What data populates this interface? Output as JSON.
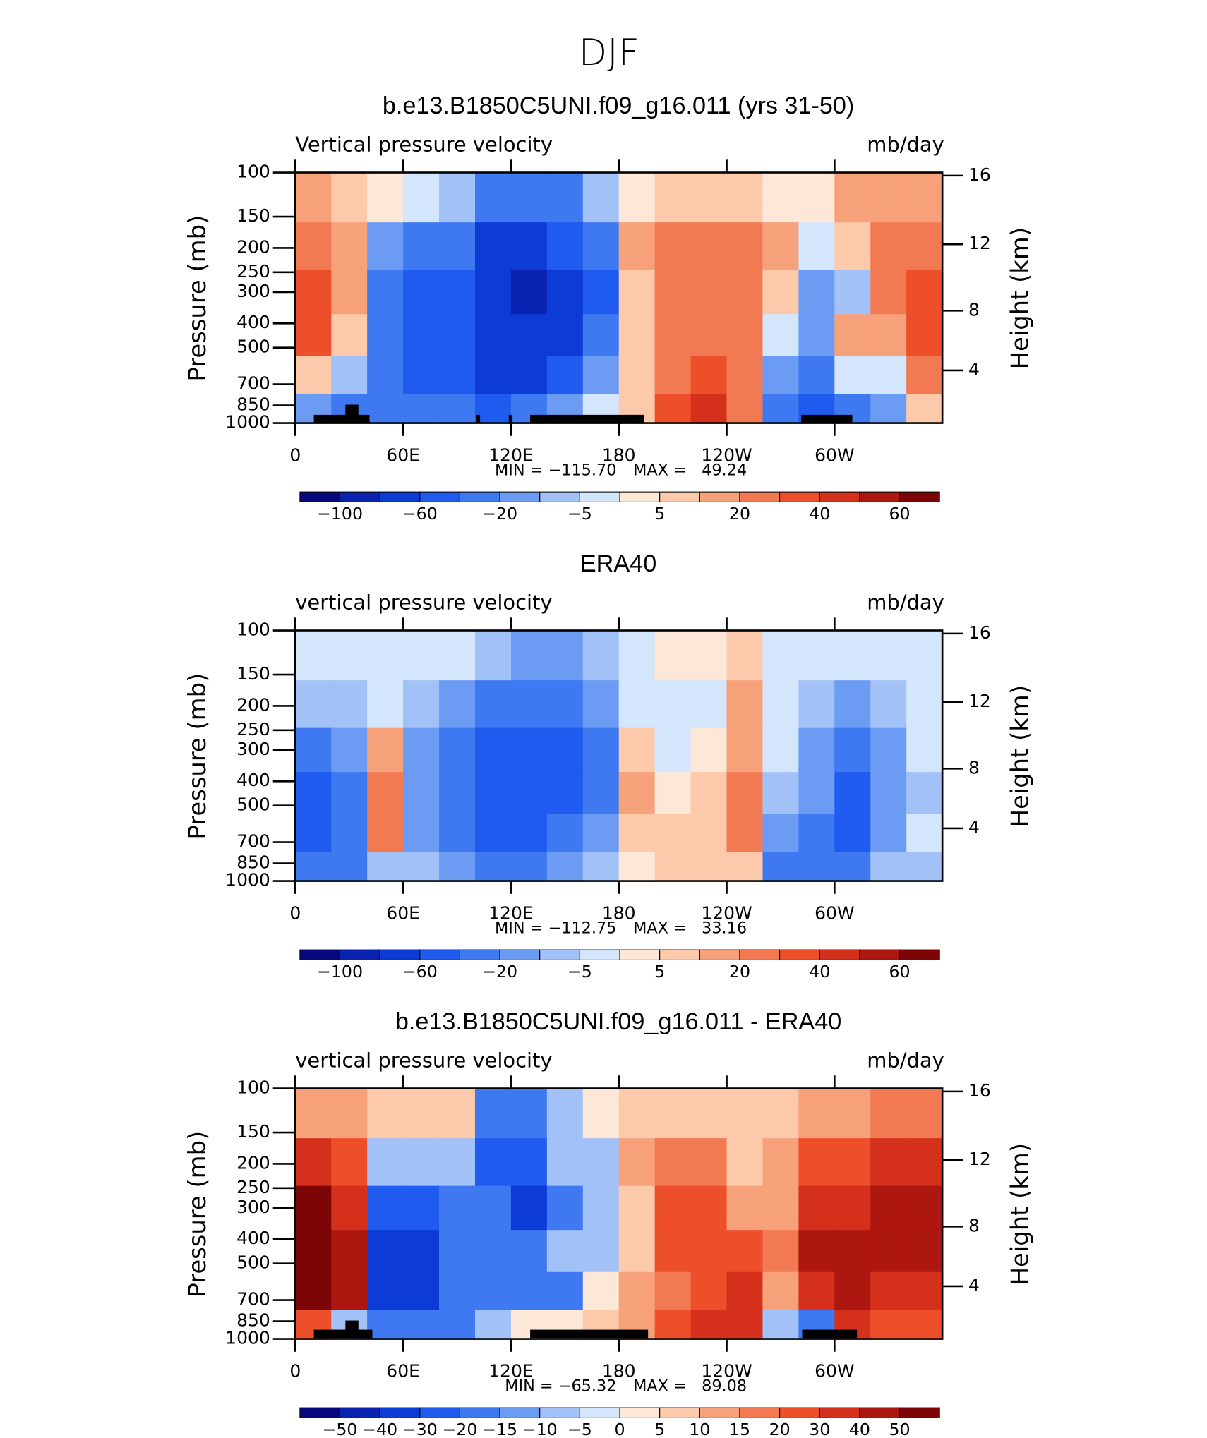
{
  "title": "DJF",
  "chart_data": [
    {
      "type": "contour",
      "title": "b.e13.B1850C5UNI.f09_g16.011 (yrs 31-50)",
      "left_label": "Vertical pressure velocity",
      "right_label": "mb/day",
      "y_label": "Pressure (mb)",
      "y2_label": "Height (km)",
      "x": [
        10,
        30,
        50,
        70,
        90,
        110,
        130,
        150,
        170,
        190,
        210,
        230,
        250,
        270,
        290,
        310,
        330,
        350
      ],
      "y": [
        125,
        200,
        300,
        450,
        650,
        900
      ],
      "z": [
        [
          10,
          5,
          0,
          -5,
          -10,
          -40,
          -40,
          -40,
          -10,
          0,
          5,
          5,
          5,
          0,
          0,
          10,
          10,
          10
        ],
        [
          20,
          10,
          -20,
          -40,
          -40,
          -80,
          -80,
          -60,
          -40,
          10,
          20,
          20,
          20,
          10,
          -5,
          5,
          20,
          20
        ],
        [
          30,
          10,
          -40,
          -60,
          -60,
          -80,
          -100,
          -80,
          -60,
          5,
          20,
          20,
          20,
          5,
          -20,
          -10,
          20,
          30
        ],
        [
          30,
          5,
          -40,
          -60,
          -60,
          -80,
          -80,
          -80,
          -40,
          5,
          20,
          20,
          20,
          -5,
          -20,
          10,
          10,
          30
        ],
        [
          5,
          -10,
          -40,
          -60,
          -60,
          -80,
          -80,
          -60,
          -20,
          5,
          20,
          30,
          20,
          -20,
          -40,
          -5,
          -5,
          20
        ],
        [
          -20,
          -40,
          -30,
          -40,
          -40,
          -60,
          -40,
          -20,
          -5,
          5,
          30,
          40,
          20,
          -40,
          -60,
          -40,
          -20,
          5
        ]
      ],
      "xlim": [
        0,
        360
      ],
      "xticks": [
        0,
        {
          "value": 60,
          "label": "60E"
        },
        {
          "value": 120,
          "label": "120E"
        },
        180,
        {
          "value": 240,
          "label": "120W"
        },
        {
          "value": 300,
          "label": "60W"
        }
      ],
      "ylim": [
        1000,
        100
      ],
      "yscale": "log",
      "yticks": [
        100,
        150,
        200,
        250,
        300,
        400,
        500,
        700,
        850,
        1000
      ],
      "y2ticks": [
        4,
        8,
        12,
        16
      ],
      "levels": [
        -100,
        -80,
        -60,
        -40,
        -20,
        -10,
        -5,
        0,
        5,
        10,
        20,
        30,
        40,
        50,
        60
      ],
      "colors": [
        "#07077e",
        "#0a22b0",
        "#0c3bd6",
        "#1f5bee",
        "#3e79f1",
        "#6c9bf3",
        "#a2c1f7",
        "#d3e6fc",
        "#fde8d8",
        "#fcc9ab",
        "#f7a17a",
        "#f27a52",
        "#ee4f2b",
        "#d5301b",
        "#ae170f",
        "#7d0505"
      ],
      "colorbar_ticks": [
        {
          "value": -100,
          "label": "−100"
        },
        {
          "value": -60,
          "label": "−60"
        },
        {
          "value": -20,
          "label": "−20"
        },
        {
          "value": -5,
          "label": "−5"
        },
        5,
        20,
        40,
        60
      ],
      "stats": [
        "MIN = −115.70",
        "MAX =   49.24"
      ]
    },
    {
      "type": "contour",
      "title": "ERA40",
      "left_label": "vertical pressure velocity",
      "right_label": "mb/day",
      "y_label": "Pressure (mb)",
      "y2_label": "Height (km)",
      "x": [
        10,
        30,
        50,
        70,
        90,
        110,
        130,
        150,
        170,
        190,
        210,
        230,
        250,
        270,
        290,
        310,
        330,
        350
      ],
      "y": [
        125,
        200,
        300,
        450,
        650,
        900
      ],
      "z": [
        [
          -5,
          -5,
          -5,
          -5,
          -5,
          -10,
          -20,
          -20,
          -10,
          -5,
          0,
          0,
          5,
          -5,
          -5,
          -5,
          -5,
          -5
        ],
        [
          -10,
          -10,
          -5,
          -10,
          -20,
          -40,
          -40,
          -40,
          -20,
          -5,
          -5,
          -5,
          10,
          -5,
          -10,
          -20,
          -10,
          -5
        ],
        [
          -40,
          -20,
          10,
          -20,
          -40,
          -60,
          -60,
          -60,
          -40,
          5,
          -5,
          0,
          10,
          -5,
          -20,
          -40,
          -20,
          -5
        ],
        [
          -60,
          -40,
          20,
          -20,
          -40,
          -60,
          -60,
          -60,
          -40,
          10,
          0,
          5,
          20,
          -10,
          -20,
          -60,
          -20,
          -10
        ],
        [
          -60,
          -40,
          20,
          -20,
          -40,
          -60,
          -60,
          -40,
          -20,
          5,
          5,
          5,
          20,
          -20,
          -40,
          -60,
          -20,
          -5
        ],
        [
          -40,
          -30,
          -10,
          -10,
          -20,
          -40,
          -40,
          -20,
          -10,
          0,
          5,
          5,
          5,
          -40,
          -40,
          -40,
          -10,
          -10
        ]
      ],
      "xlim": [
        0,
        360
      ],
      "xticks": [
        0,
        {
          "value": 60,
          "label": "60E"
        },
        {
          "value": 120,
          "label": "120E"
        },
        180,
        {
          "value": 240,
          "label": "120W"
        },
        {
          "value": 300,
          "label": "60W"
        }
      ],
      "ylim": [
        1000,
        100
      ],
      "yscale": "log",
      "yticks": [
        100,
        150,
        200,
        250,
        300,
        400,
        500,
        700,
        850,
        1000
      ],
      "y2ticks": [
        4,
        8,
        12,
        16
      ],
      "levels": [
        -100,
        -80,
        -60,
        -40,
        -20,
        -10,
        -5,
        0,
        5,
        10,
        20,
        30,
        40,
        50,
        60
      ],
      "colors": [
        "#07077e",
        "#0a22b0",
        "#0c3bd6",
        "#1f5bee",
        "#3e79f1",
        "#6c9bf3",
        "#a2c1f7",
        "#d3e6fc",
        "#fde8d8",
        "#fcc9ab",
        "#f7a17a",
        "#f27a52",
        "#ee4f2b",
        "#d5301b",
        "#ae170f",
        "#7d0505"
      ],
      "colorbar_ticks": [
        {
          "value": -100,
          "label": "−100"
        },
        {
          "value": -60,
          "label": "−60"
        },
        {
          "value": -20,
          "label": "−20"
        },
        {
          "value": -5,
          "label": "−5"
        },
        5,
        20,
        40,
        60
      ],
      "stats": [
        "MIN = −112.75",
        "MAX =   33.16"
      ]
    },
    {
      "type": "contour",
      "title": "b.e13.B1850C5UNI.f09_g16.011 - ERA40",
      "left_label": "vertical pressure velocity",
      "right_label": "mb/day",
      "y_label": "Pressure (mb)",
      "y2_label": "Height (km)",
      "x": [
        10,
        30,
        50,
        70,
        90,
        110,
        130,
        150,
        170,
        190,
        210,
        230,
        250,
        270,
        290,
        310,
        330,
        350
      ],
      "y": [
        125,
        200,
        300,
        450,
        650,
        900
      ],
      "z": [
        [
          10,
          10,
          5,
          5,
          5,
          -20,
          -20,
          -10,
          0,
          5,
          5,
          5,
          5,
          5,
          10,
          10,
          15,
          15
        ],
        [
          30,
          20,
          -10,
          -10,
          -10,
          -30,
          -30,
          -10,
          -10,
          10,
          15,
          15,
          5,
          10,
          20,
          20,
          30,
          30
        ],
        [
          50,
          30,
          -30,
          -30,
          -20,
          -20,
          -40,
          -20,
          -10,
          5,
          20,
          20,
          10,
          10,
          30,
          30,
          40,
          40
        ],
        [
          60,
          40,
          -40,
          -40,
          -20,
          -20,
          -20,
          -10,
          -10,
          5,
          20,
          20,
          20,
          15,
          40,
          40,
          40,
          40
        ],
        [
          60,
          40,
          -40,
          -40,
          -20,
          -20,
          -20,
          -20,
          0,
          10,
          15,
          20,
          30,
          10,
          30,
          40,
          30,
          30
        ],
        [
          20,
          -10,
          -20,
          -20,
          -20,
          -10,
          0,
          0,
          5,
          10,
          20,
          30,
          30,
          -10,
          -20,
          30,
          20,
          20
        ]
      ],
      "xlim": [
        0,
        360
      ],
      "xticks": [
        0,
        {
          "value": 60,
          "label": "60E"
        },
        {
          "value": 120,
          "label": "120E"
        },
        180,
        {
          "value": 240,
          "label": "120W"
        },
        {
          "value": 300,
          "label": "60W"
        }
      ],
      "ylim": [
        1000,
        100
      ],
      "yscale": "log",
      "yticks": [
        100,
        150,
        200,
        250,
        300,
        400,
        500,
        700,
        850,
        1000
      ],
      "y2ticks": [
        4,
        8,
        12,
        16
      ],
      "levels": [
        -50,
        -40,
        -30,
        -20,
        -15,
        -10,
        -5,
        0,
        5,
        10,
        15,
        20,
        30,
        40,
        50
      ],
      "colors": [
        "#07077e",
        "#0a22b0",
        "#0c3bd6",
        "#1f5bee",
        "#3e79f1",
        "#6c9bf3",
        "#a2c1f7",
        "#d3e6fc",
        "#fde8d8",
        "#fcc9ab",
        "#f7a17a",
        "#f27a52",
        "#ee4f2b",
        "#d5301b",
        "#ae170f",
        "#7d0505"
      ],
      "colorbar_ticks": [
        {
          "value": -50,
          "label": "−50"
        },
        {
          "value": -40,
          "label": "−40"
        },
        {
          "value": -30,
          "label": "−30"
        },
        {
          "value": -20,
          "label": "−20"
        },
        {
          "value": -15,
          "label": "−15"
        },
        {
          "value": -10,
          "label": "−10"
        },
        {
          "value": -5,
          "label": "−5"
        },
        0,
        5,
        10,
        15,
        20,
        30,
        40,
        50
      ],
      "stats": [
        "MIN = −65.32",
        "MAX =   89.08"
      ]
    }
  ]
}
